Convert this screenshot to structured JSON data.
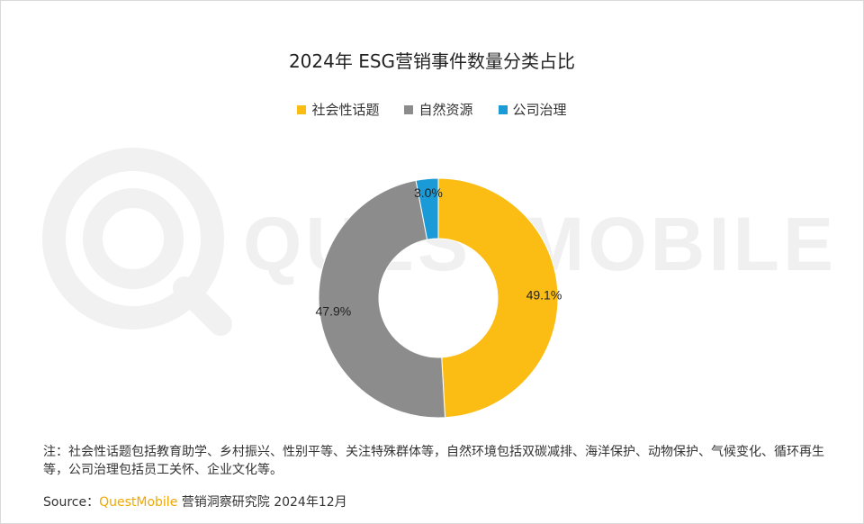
{
  "chart_data": {
    "type": "pie",
    "title": "2024年 ESG营销事件数量分类占比",
    "donut": true,
    "categories": [
      "社会性话题",
      "自然资源",
      "公司治理"
    ],
    "values": [
      49.1,
      47.9,
      3.0
    ],
    "value_labels": [
      "49.1%",
      "47.9%",
      "3.0%"
    ],
    "colors": [
      "#fbbd14",
      "#8c8c8c",
      "#1a9ad6"
    ],
    "legend_position": "top"
  },
  "watermark_text": "QUESTMOBILE",
  "note": "注：社会性话题包括教育助学、乡村振兴、性别平等、关注特殊群体等，自然环境包括双碳减排、海洋保护、动物保护、气候变化、循环再生等，公司治理包括员工关怀、企业文化等。",
  "source": {
    "prefix": "Source：",
    "brand": "QuestMobile",
    "suffix": " 营销洞察研究院 2024年12月"
  }
}
